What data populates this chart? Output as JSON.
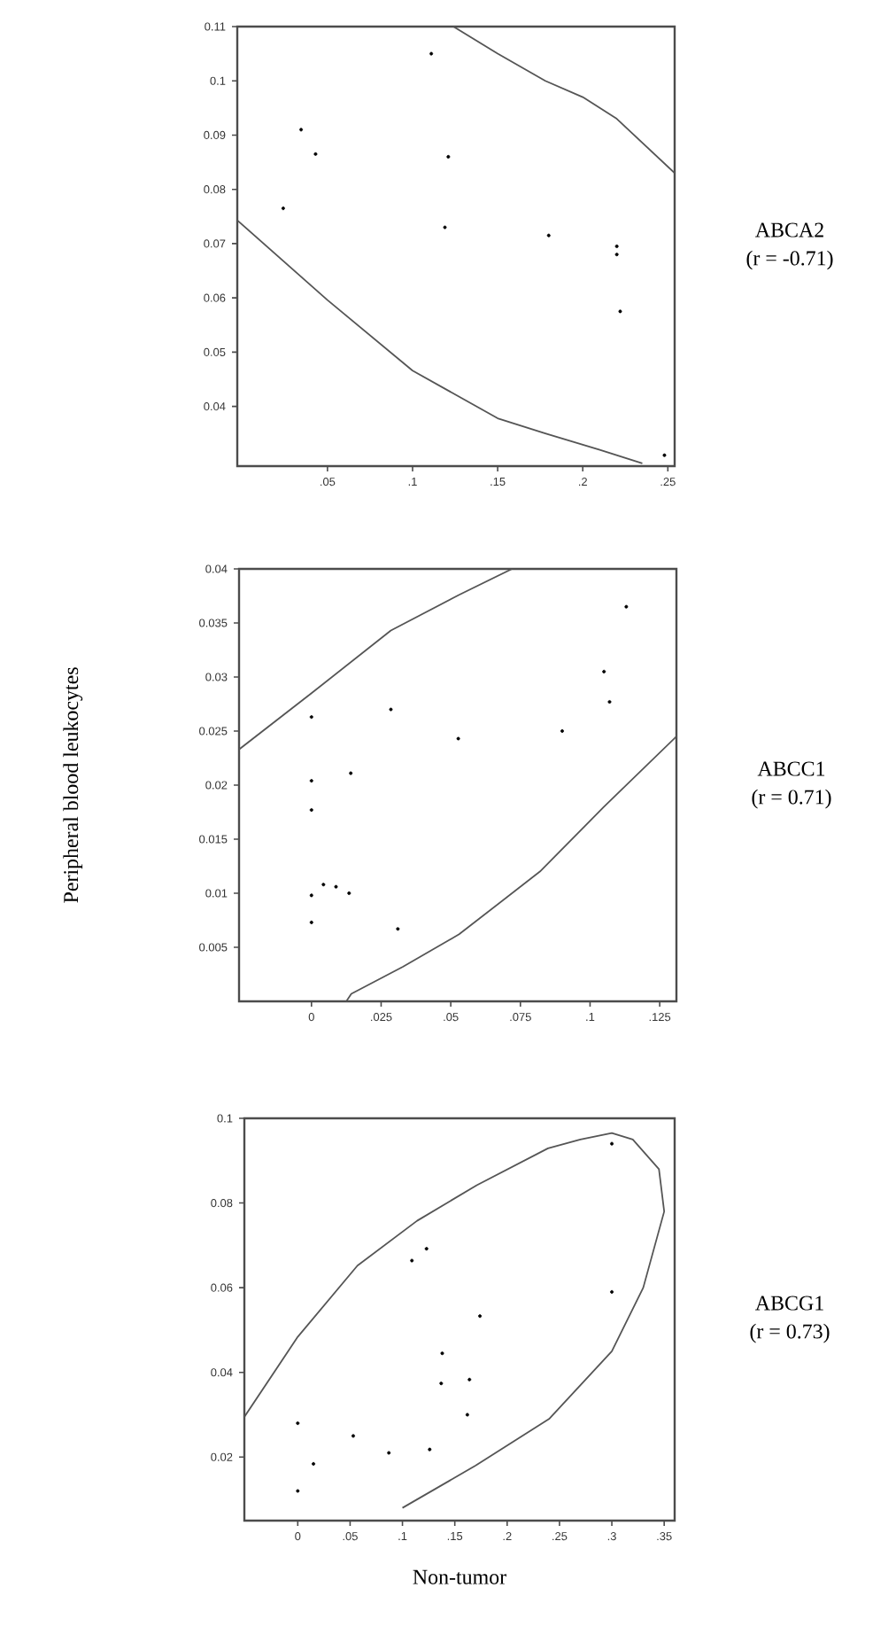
{
  "chart_data": [
    {
      "type": "scatter",
      "marker": "circle",
      "annotations": [
        "ABCA2",
        "(r = -0.71)"
      ],
      "xlim": [
        -0.003,
        0.254
      ],
      "ylim": [
        0.029,
        0.11
      ],
      "xticks": [
        {
          "value": 0.05,
          "label": ".05"
        },
        {
          "value": 0.1,
          "label": ".1"
        },
        {
          "value": 0.15,
          "label": ".15"
        },
        {
          "value": 0.2,
          "label": ".2"
        },
        {
          "value": 0.25,
          "label": ".25"
        }
      ],
      "yticks": [
        0.04,
        0.05,
        0.06,
        0.07,
        0.08,
        0.09,
        0.1,
        0.11
      ],
      "series": [
        {
          "color": "#000000",
          "x": [
            0.024,
            0.0345,
            0.043,
            0.111,
            0.121,
            0.119,
            0.18,
            0.22,
            0.22,
            0.222,
            0.248
          ],
          "values": [
            0.0765,
            0.091,
            0.0865,
            0.105,
            0.086,
            0.073,
            0.0715,
            0.0695,
            0.068,
            0.0575,
            0.031
          ]
        },
        {
          "type": "line",
          "marker": "none",
          "color": "#555555",
          "x": [
            -0.003,
            0.05,
            0.1,
            0.15,
            0.178,
            0.21,
            0.235
          ],
          "values": [
            0.0743,
            0.0596,
            0.0466,
            0.0378,
            0.035,
            0.032,
            0.0295
          ]
        },
        {
          "type": "line",
          "marker": "none",
          "color": "#555555",
          "x": [
            0.124,
            0.15,
            0.178,
            0.2,
            0.22,
            0.254
          ],
          "values": [
            0.11,
            0.105,
            0.1,
            0.097,
            0.093,
            0.083
          ]
        }
      ]
    },
    {
      "type": "scatter",
      "marker": "circle",
      "ylabel": "Peripheral blood  leukocytes",
      "annotations": [
        "ABCC1",
        "(r = 0.71)"
      ],
      "xlim": [
        -0.026,
        0.131
      ],
      "ylim": [
        0,
        0.04
      ],
      "xticks": [
        0,
        {
          "value": 0.025,
          "label": ".025"
        },
        {
          "value": 0.05,
          "label": ".05"
        },
        {
          "value": 0.075,
          "label": ".075"
        },
        {
          "value": 0.1,
          "label": ".1"
        },
        {
          "value": 0.125,
          "label": ".125"
        }
      ],
      "yticks": [
        0.005,
        0.01,
        0.015,
        0.02,
        0.025,
        0.03,
        0.035,
        0.04
      ],
      "series": [
        {
          "color": "#000000",
          "x": [
            0,
            0,
            0,
            0,
            0,
            0.0043,
            0.0088,
            0.0135,
            0.0141,
            0.0285,
            0.031,
            0.0527,
            0.09,
            0.105,
            0.107,
            0.113
          ],
          "values": [
            0.0263,
            0.0204,
            0.0177,
            0.0098,
            0.0073,
            0.0108,
            0.0106,
            0.01,
            0.0211,
            0.027,
            0.0067,
            0.0243,
            0.025,
            0.0305,
            0.0277,
            0.0365
          ]
        },
        {
          "type": "line",
          "marker": "none",
          "color": "#555555",
          "x": [
            -0.026,
            0,
            0.0285,
            0.053,
            0.072
          ],
          "values": [
            0.0233,
            0.0285,
            0.0343,
            0.0376,
            0.04
          ]
        },
        {
          "type": "line",
          "marker": "none",
          "color": "#555555",
          "x": [
            0.0125,
            0.0143,
            0.0328,
            0.053,
            0.082,
            0.105,
            0.131
          ],
          "values": [
            0,
            0.0007,
            0.0032,
            0.0062,
            0.012,
            0.018,
            0.0245
          ]
        }
      ]
    },
    {
      "type": "scatter",
      "marker": "circle",
      "xlabel": "Non-tumor",
      "annotations": [
        "ABCG1",
        "(r = 0.73)"
      ],
      "xlim": [
        -0.051,
        0.36
      ],
      "ylim": [
        0.005,
        0.1
      ],
      "xticks": [
        0,
        {
          "value": 0.05,
          "label": ".05"
        },
        {
          "value": 0.1,
          "label": ".1"
        },
        {
          "value": 0.15,
          "label": ".15"
        },
        {
          "value": 0.2,
          "label": ".2"
        },
        {
          "value": 0.25,
          "label": ".25"
        },
        {
          "value": 0.3,
          "label": ".3"
        },
        {
          "value": 0.35,
          "label": ".35"
        }
      ],
      "yticks": [
        0.02,
        0.04,
        0.06,
        0.08,
        0.1
      ],
      "series": [
        {
          "color": "#000000",
          "x": [
            0,
            0,
            0.015,
            0.053,
            0.087,
            0.126,
            0.109,
            0.123,
            0.138,
            0.137,
            0.164,
            0.162,
            0.174,
            0.3,
            0.3
          ],
          "values": [
            0.028,
            0.012,
            0.0184,
            0.025,
            0.021,
            0.0218,
            0.0664,
            0.0692,
            0.0445,
            0.0374,
            0.0383,
            0.03,
            0.0533,
            0.094,
            0.059
          ]
        },
        {
          "type": "line",
          "marker": "none",
          "color": "#555555",
          "x": [
            -0.051,
            0,
            0.057,
            0.114,
            0.171,
            0.239,
            0.27,
            0.3,
            0.32,
            0.345,
            0.35,
            0.33,
            0.3,
            0.24,
            0.17,
            0.1
          ],
          "values": [
            0.0295,
            0.0484,
            0.0652,
            0.0758,
            0.0842,
            0.0929,
            0.095,
            0.0965,
            0.095,
            0.088,
            0.078,
            0.06,
            0.045,
            0.029,
            0.018,
            0.008
          ]
        }
      ]
    }
  ]
}
